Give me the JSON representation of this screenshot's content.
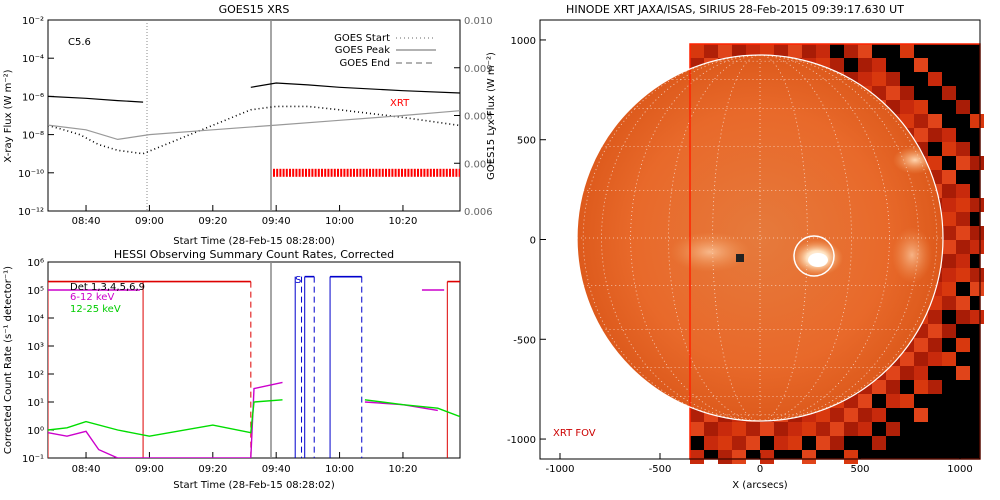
{
  "chart_data": [
    {
      "type": "line",
      "title": "GOES15 XRS",
      "xlabel": "Start Time (28-Feb-15 08:28:00)",
      "ylabel": "X-ray Flux (W m⁻²)",
      "ylabel_right": "GOES15 Lyx Flux (W m⁻²)",
      "x_ticks": [
        "08:40",
        "09:00",
        "09:20",
        "09:40",
        "10:00",
        "10:20"
      ],
      "y_ticks": [
        "10⁻²",
        "10⁻⁴",
        "10⁻⁶",
        "10⁻⁸",
        "10⁻¹⁰",
        "10⁻¹²"
      ],
      "y_ticks_right": [
        "0.010",
        "0.009",
        "0.008",
        "0.007",
        "0.006"
      ],
      "y_scale": "log",
      "ylim": [
        1e-12,
        0.01
      ],
      "ylim_right": [
        0.006,
        0.01
      ],
      "class_label": "C5.6",
      "legend": [
        "GOES Start",
        "GOES Peak",
        "GOES End"
      ],
      "annotation": "XRT",
      "series": [
        {
          "name": "",
          "color": "#000000",
          "x": [
            "08:28",
            "08:40",
            "08:50",
            "08:58",
            "09:20",
            "09:32",
            "09:40",
            "09:50",
            "10:00",
            "10:20",
            "10:38"
          ],
          "y": [
            1e-06,
            8e-07,
            6e-07,
            5e-07,
            null,
            3e-06,
            5e-06,
            4e-06,
            3e-06,
            2e-06,
            1.5e-06
          ]
        },
        {
          "name": "",
          "color": "#000000",
          "style": "dotted",
          "x": [
            "08:28",
            "08:32",
            "08:38",
            "08:44",
            "08:50",
            "08:58",
            "09:32",
            "09:40",
            "09:50",
            "10:00",
            "10:20",
            "10:38"
          ],
          "y": [
            3e-08,
            2e-08,
            1e-08,
            3e-09,
            1.5e-09,
            1e-09,
            2e-07,
            3e-07,
            3e-07,
            2e-07,
            8e-08,
            3e-08
          ]
        },
        {
          "name": "",
          "color": "#999999",
          "x": [
            "08:28",
            "08:40",
            "08:50",
            "09:00",
            "09:20",
            "09:40",
            "10:00",
            "10:20",
            "10:38"
          ],
          "y": [
            0.0078,
            0.0077,
            0.0075,
            0.0076,
            0.0077,
            0.0078,
            0.0079,
            0.008,
            0.0081
          ]
        }
      ],
      "events": {
        "goes_start": "08:57",
        "goes_peak": "09:39"
      },
      "xrt_obs": {
        "start": "09:39",
        "end": "10:38",
        "color": "#ff0000"
      }
    },
    {
      "type": "line",
      "title": "HESSI Observing Summary Count Rates, Corrected",
      "xlabel": "Start Time (28-Feb-15 08:28:02)",
      "ylabel": "Corrected Count Rate (s⁻¹ detector⁻¹)",
      "x_ticks": [
        "08:40",
        "09:00",
        "09:20",
        "09:40",
        "10:00",
        "10:20"
      ],
      "y_ticks": [
        "10⁶",
        "10⁵",
        "10⁴",
        "10³",
        "10²",
        "10¹",
        "10⁰",
        "10⁻¹"
      ],
      "y_scale": "log",
      "ylim": [
        0.1,
        1000000.0
      ],
      "legend_title": "Det 1,3,4,5,6,9",
      "series": [
        {
          "name": "6-12 keV",
          "color": "#cc00cc",
          "x": [
            "08:28",
            "08:34",
            "08:40",
            "08:44",
            "08:50",
            "09:00",
            "09:20",
            "09:32",
            "09:33",
            "09:42",
            "09:43",
            "10:08",
            "10:20",
            "10:31"
          ],
          "y": [
            0.8,
            0.6,
            0.9,
            0.2,
            0.1,
            0.1,
            0.1,
            0.1,
            30,
            50,
            null,
            10,
            8,
            5
          ]
        },
        {
          "name": "12-25 keV",
          "color": "#00dd00",
          "x": [
            "08:28",
            "08:34",
            "08:40",
            "08:50",
            "09:00",
            "09:20",
            "09:32",
            "09:33",
            "09:42",
            "09:43",
            "10:08",
            "10:20",
            "10:31",
            "10:38"
          ],
          "y": [
            1,
            1.2,
            2,
            1,
            0.6,
            1.5,
            0.8,
            10,
            12,
            null,
            12,
            8,
            6,
            3
          ]
        }
      ],
      "flags": {
        "red": [
          [
            "08:28",
            "08:58"
          ],
          [
            "08:58",
            "09:32"
          ],
          [
            "10:34",
            "10:38"
          ]
        ],
        "magenta": [
          [
            "08:28",
            "08:57"
          ],
          [
            "10:26",
            "10:33"
          ]
        ],
        "blue": [
          [
            "09:49",
            "09:52"
          ],
          [
            "09:57",
            "10:07"
          ]
        ],
        "saa_label": "S"
      }
    },
    {
      "type": "heatmap",
      "title": "HINODE XRT JAXA/ISAS, SIRIUS 28-Feb-2015 09:39:17.630 UT",
      "xlabel": "X (arcsecs)",
      "x_ticks": [
        -1000,
        -500,
        0,
        500,
        1000
      ],
      "y_ticks": [
        1000,
        500,
        0,
        -500,
        -1000
      ],
      "xlim": [
        -1100,
        1100
      ],
      "ylim": [
        -1100,
        1100
      ],
      "fov_label": "XRT FOV",
      "limb_radius_arcsec": 970,
      "flare_location_arcsec": [
        260,
        -90
      ],
      "colors": {
        "disk": "#e85a14",
        "space": "#000000",
        "fov": "#ff2200",
        "limb": "#ffffff"
      }
    }
  ]
}
